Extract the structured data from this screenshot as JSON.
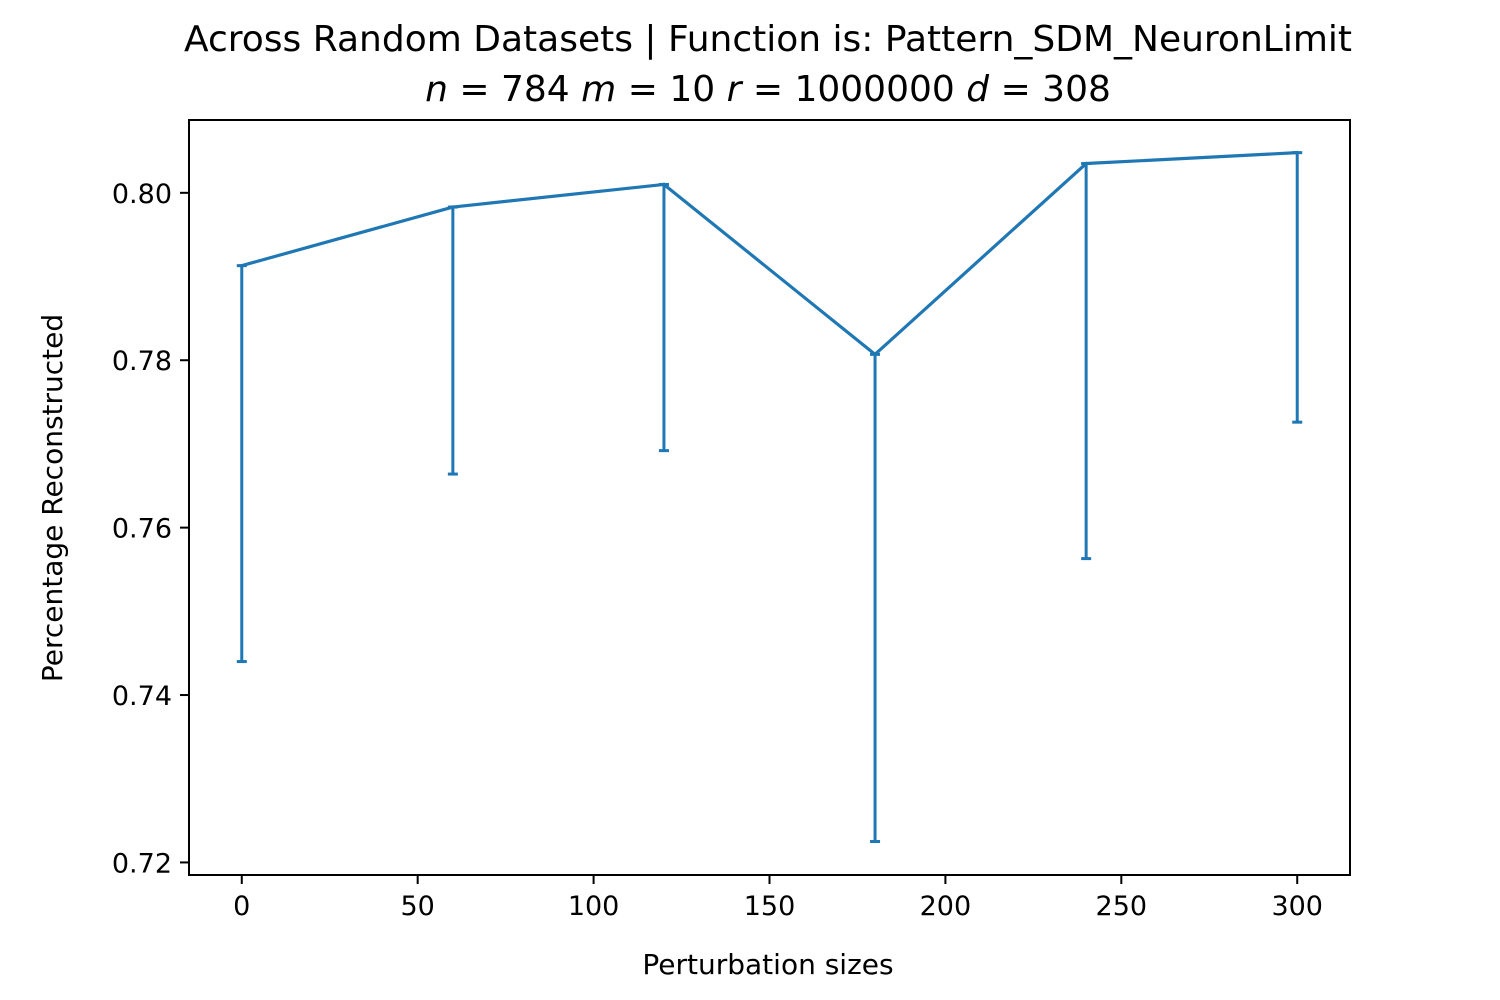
{
  "chart_data": {
    "type": "line",
    "title": "Across Random Datasets | Function is: Pattern_SDM_NeuronLimit",
    "subtitle": {
      "n_label": "n",
      "n_value": "784",
      "m_label": "m",
      "m_value": "10",
      "r_label": "r",
      "r_value": "1000000",
      "d_label": "d",
      "d_value": "308"
    },
    "xlabel": "Perturbation sizes",
    "ylabel": "Percentage Reconstructed",
    "xlim": [
      -15,
      315
    ],
    "ylim": [
      0.7185,
      0.8087
    ],
    "xticks": [
      0,
      50,
      100,
      150,
      200,
      250,
      300
    ],
    "xtick_labels": [
      "0",
      "50",
      "100",
      "150",
      "200",
      "250",
      "300"
    ],
    "yticks": [
      0.72,
      0.74,
      0.76,
      0.78,
      0.8
    ],
    "ytick_labels": [
      "0.72",
      "0.74",
      "0.76",
      "0.78",
      "0.80"
    ],
    "grid": false,
    "legend": "none",
    "series": [
      {
        "x": [
          0,
          60,
          120,
          180,
          240,
          300
        ],
        "y": [
          0.7913,
          0.7983,
          0.801,
          0.7807,
          0.8035,
          0.8048
        ],
        "yerr_lower": [
          0.0473,
          0.0319,
          0.0318,
          0.0582,
          0.0472,
          0.0322
        ],
        "yerr_upper": [
          0.0,
          0.0,
          0.0,
          0.0,
          0.0,
          0.0
        ],
        "color": "#1f77b4"
      }
    ]
  }
}
